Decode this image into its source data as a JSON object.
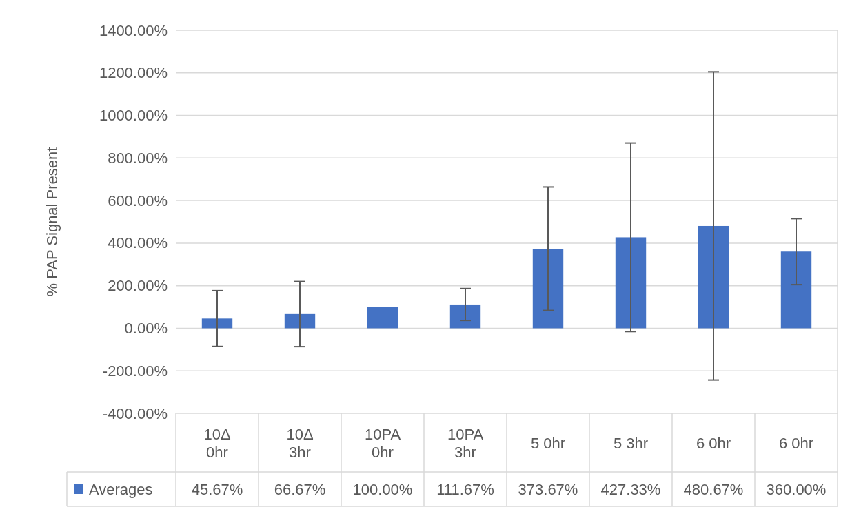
{
  "chart_data": {
    "type": "bar",
    "ylabel": "% PAP Signal Present",
    "categories": [
      "10Δ 0hr",
      "10Δ 3hr",
      "10PA 0hr",
      "10PA 3hr",
      "5 0hr",
      "5 3hr",
      "6 0hr",
      "6 0hr"
    ],
    "series": [
      {
        "name": "Averages",
        "color": "#4472c4",
        "values": [
          45.67,
          66.67,
          100,
          111.67,
          373.67,
          427.33,
          480.67,
          360
        ],
        "errors": [
          131,
          153,
          null,
          75,
          290,
          443,
          724,
          155
        ],
        "value_labels": [
          "45.67%",
          "66.67%",
          "100.00%",
          "111.67%",
          "373.67%",
          "427.33%",
          "480.67%",
          "360.00%"
        ]
      }
    ],
    "ylim": [
      -400,
      1400
    ],
    "yticks": [
      {
        "value": -400,
        "label": "-400.00%"
      },
      {
        "value": -200,
        "label": "-200.00%"
      },
      {
        "value": 0,
        "label": "0.00%"
      },
      {
        "value": 200,
        "label": "200.00%"
      },
      {
        "value": 400,
        "label": "400.00%"
      },
      {
        "value": 600,
        "label": "600.00%"
      },
      {
        "value": 800,
        "label": "800.00%"
      },
      {
        "value": 1000,
        "label": "1000.00%"
      },
      {
        "value": 1200,
        "label": "1200.00%"
      },
      {
        "value": 1400,
        "label": "1400.00%"
      }
    ],
    "grid": "y",
    "legend": "bottom"
  }
}
